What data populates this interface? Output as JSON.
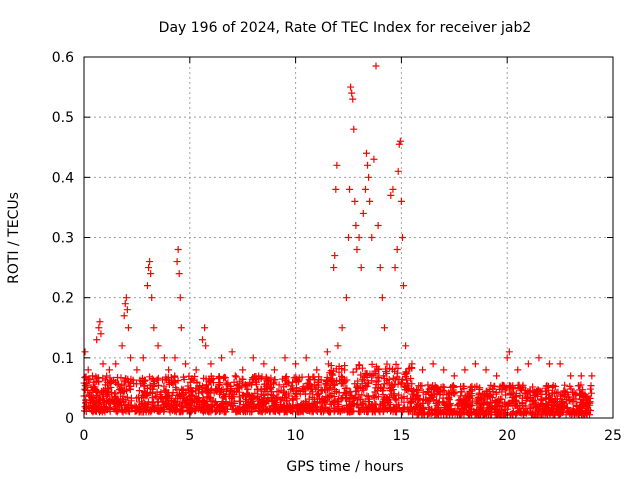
{
  "chart_data": {
    "type": "scatter",
    "title": "Day 196 of 2024, Rate Of TEC Index for receiver jab2",
    "xlabel": "GPS time / hours",
    "ylabel": "ROTI / TECUs",
    "xlim": [
      0,
      25
    ],
    "ylim": [
      0,
      0.6
    ],
    "xticks": [
      0,
      5,
      10,
      15,
      20,
      25
    ],
    "yticks": [
      0,
      0.1,
      0.2,
      0.3,
      0.4,
      0.5,
      0.6
    ],
    "xtick_labels": [
      "0",
      "5",
      "10",
      "15",
      "20",
      "25"
    ],
    "ytick_labels": [
      "0",
      "0.1",
      "0.2",
      "0.3",
      "0.4",
      "0.5",
      "0.6"
    ],
    "grid": true,
    "marker": "+",
    "color": "#ff0000",
    "series": [
      {
        "name": "jab2",
        "points": [
          [
            0.05,
            0.11
          ],
          [
            0.2,
            0.08
          ],
          [
            0.4,
            0.07
          ],
          [
            0.6,
            0.13
          ],
          [
            0.7,
            0.15
          ],
          [
            0.75,
            0.16
          ],
          [
            0.8,
            0.14
          ],
          [
            0.9,
            0.09
          ],
          [
            1.2,
            0.08
          ],
          [
            1.5,
            0.09
          ],
          [
            1.8,
            0.12
          ],
          [
            1.9,
            0.17
          ],
          [
            1.95,
            0.19
          ],
          [
            2.0,
            0.2
          ],
          [
            2.05,
            0.18
          ],
          [
            2.1,
            0.15
          ],
          [
            2.2,
            0.1
          ],
          [
            2.5,
            0.08
          ],
          [
            2.8,
            0.1
          ],
          [
            3.0,
            0.22
          ],
          [
            3.05,
            0.25
          ],
          [
            3.1,
            0.26
          ],
          [
            3.15,
            0.24
          ],
          [
            3.2,
            0.2
          ],
          [
            3.3,
            0.15
          ],
          [
            3.5,
            0.12
          ],
          [
            3.8,
            0.1
          ],
          [
            4.0,
            0.08
          ],
          [
            4.3,
            0.1
          ],
          [
            4.4,
            0.26
          ],
          [
            4.45,
            0.28
          ],
          [
            4.5,
            0.24
          ],
          [
            4.55,
            0.2
          ],
          [
            4.6,
            0.15
          ],
          [
            4.8,
            0.09
          ],
          [
            5.3,
            0.08
          ],
          [
            5.6,
            0.13
          ],
          [
            5.7,
            0.15
          ],
          [
            5.75,
            0.12
          ],
          [
            6.0,
            0.09
          ],
          [
            6.5,
            0.1
          ],
          [
            7.0,
            0.11
          ],
          [
            7.5,
            0.08
          ],
          [
            8.0,
            0.1
          ],
          [
            8.5,
            0.09
          ],
          [
            9.0,
            0.08
          ],
          [
            9.5,
            0.1
          ],
          [
            10.0,
            0.09
          ],
          [
            10.5,
            0.1
          ],
          [
            11.0,
            0.08
          ],
          [
            11.5,
            0.11
          ],
          [
            11.8,
            0.25
          ],
          [
            11.85,
            0.27
          ],
          [
            11.9,
            0.38
          ],
          [
            11.95,
            0.42
          ],
          [
            12.0,
            0.12
          ],
          [
            12.2,
            0.15
          ],
          [
            12.4,
            0.2
          ],
          [
            12.5,
            0.3
          ],
          [
            12.55,
            0.38
          ],
          [
            12.6,
            0.55
          ],
          [
            12.65,
            0.54
          ],
          [
            12.7,
            0.53
          ],
          [
            12.75,
            0.48
          ],
          [
            12.8,
            0.36
          ],
          [
            12.85,
            0.32
          ],
          [
            12.9,
            0.28
          ],
          [
            13.0,
            0.3
          ],
          [
            13.1,
            0.25
          ],
          [
            13.2,
            0.34
          ],
          [
            13.3,
            0.38
          ],
          [
            13.35,
            0.44
          ],
          [
            13.4,
            0.42
          ],
          [
            13.45,
            0.4
          ],
          [
            13.5,
            0.36
          ],
          [
            13.6,
            0.3
          ],
          [
            13.7,
            0.43
          ],
          [
            13.8,
            0.585
          ],
          [
            13.9,
            0.32
          ],
          [
            14.0,
            0.25
          ],
          [
            14.1,
            0.2
          ],
          [
            14.2,
            0.15
          ],
          [
            14.5,
            0.37
          ],
          [
            14.6,
            0.38
          ],
          [
            14.7,
            0.25
          ],
          [
            14.8,
            0.28
          ],
          [
            14.85,
            0.41
          ],
          [
            14.9,
            0.455
          ],
          [
            14.95,
            0.46
          ],
          [
            15.0,
            0.36
          ],
          [
            15.05,
            0.3
          ],
          [
            15.1,
            0.22
          ],
          [
            15.2,
            0.12
          ],
          [
            15.5,
            0.09
          ],
          [
            16.0,
            0.08
          ],
          [
            16.5,
            0.09
          ],
          [
            17.0,
            0.08
          ],
          [
            17.5,
            0.07
          ],
          [
            18.0,
            0.08
          ],
          [
            18.5,
            0.09
          ],
          [
            19.0,
            0.08
          ],
          [
            19.5,
            0.07
          ],
          [
            20.0,
            0.1
          ],
          [
            20.1,
            0.11
          ],
          [
            20.5,
            0.08
          ],
          [
            21.0,
            0.09
          ],
          [
            21.5,
            0.1
          ],
          [
            22.0,
            0.09
          ],
          [
            22.5,
            0.09
          ],
          [
            23.0,
            0.07
          ],
          [
            23.5,
            0.07
          ],
          [
            24.0,
            0.07
          ]
        ]
      }
    ],
    "baseline": {
      "description": "dense noise band of ROTI values across 0-24 h",
      "x_range": [
        0,
        24
      ],
      "segments": [
        {
          "from": 0,
          "to": 11.5,
          "low": 0.01,
          "high": 0.07
        },
        {
          "from": 11.5,
          "to": 15.5,
          "low": 0.01,
          "high": 0.09
        },
        {
          "from": 15.5,
          "to": 24,
          "low": 0.005,
          "high": 0.055
        }
      ],
      "count": 2200,
      "seed": 196
    }
  }
}
